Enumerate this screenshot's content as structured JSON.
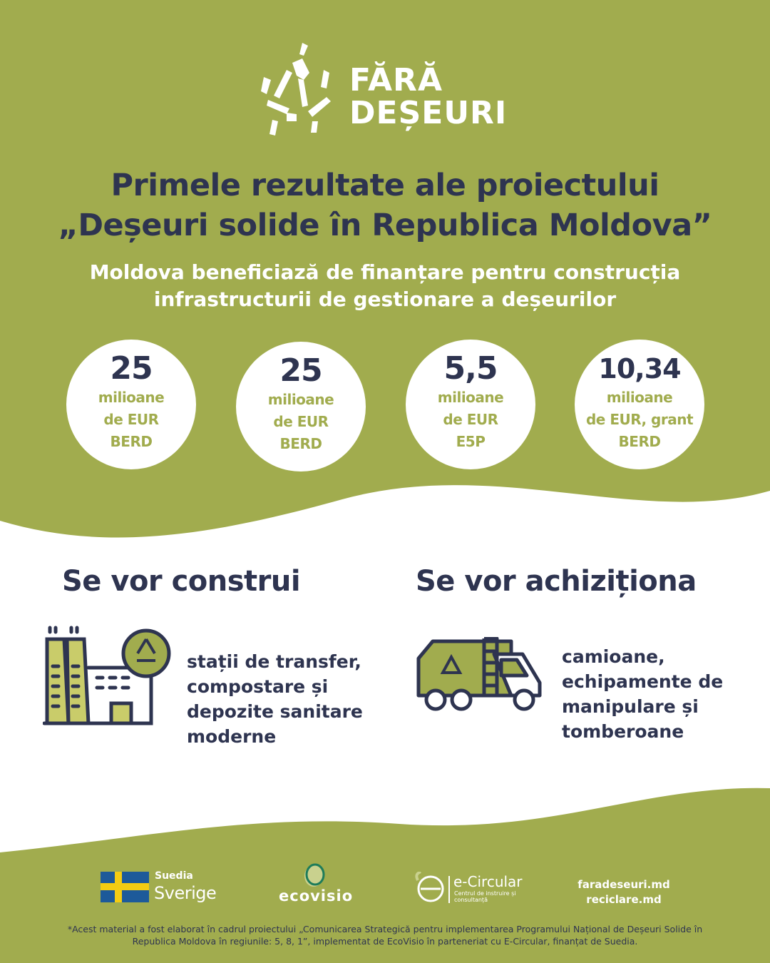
{
  "logo": {
    "line1": "FĂRĂ",
    "line2": "DEȘEURI"
  },
  "title": {
    "line1": "Primele rezultate ale proiectului",
    "line2": "„Deșeuri solide în Republica Moldova”"
  },
  "subtitle": {
    "line1": "Moldova beneficiază de finanțare pentru construcția",
    "line2": "infrastructurii de gestionare a deșeurilor"
  },
  "stats": [
    {
      "value": "25",
      "unit": "milioane",
      "currency": "de EUR",
      "source": "BERD"
    },
    {
      "value": "25",
      "unit": "milioane",
      "currency": "de EUR",
      "source": "BERD"
    },
    {
      "value": "5,5",
      "unit": "milioane",
      "currency": "de EUR",
      "source": "E5P"
    },
    {
      "value": "10,34",
      "unit": "milioane",
      "currency": "de EUR, grant",
      "source": "BERD"
    }
  ],
  "build": {
    "heading": "Se vor construi",
    "lines": [
      "stații de transfer,",
      "compostare și",
      "depozite sanitare",
      "moderne"
    ],
    "icon": "factory-recycle-icon"
  },
  "acquire": {
    "heading": "Se vor achiziționa",
    "lines": [
      "camioane,",
      "echipamente de",
      "manipulare și",
      "tomberoane"
    ],
    "icon": "garbage-truck-icon"
  },
  "footer": {
    "sweden": {
      "small": "Suedia",
      "big": "Sverige"
    },
    "ecovisio": "ecovisio",
    "ecircular": {
      "name": "e-Circular",
      "tag1": "Centrul de instruire și",
      "tag2": "consultanță"
    },
    "links": [
      "faradeseuri.md",
      "reciclare.md"
    ],
    "note1": "*Acest material a fost elaborat în cadrul proiectului „Comunicarea Strategică pentru implementarea Programului Național de Deșeuri Solide în",
    "note2": "Republica Moldova în regiunile: 5, 8, 1”, implementat de EcoVisio în parteneriat cu E-Circular, finanțat de Suedia."
  },
  "colors": {
    "green": "#a1ac4e",
    "navy": "#2e3450",
    "white": "#ffffff"
  }
}
